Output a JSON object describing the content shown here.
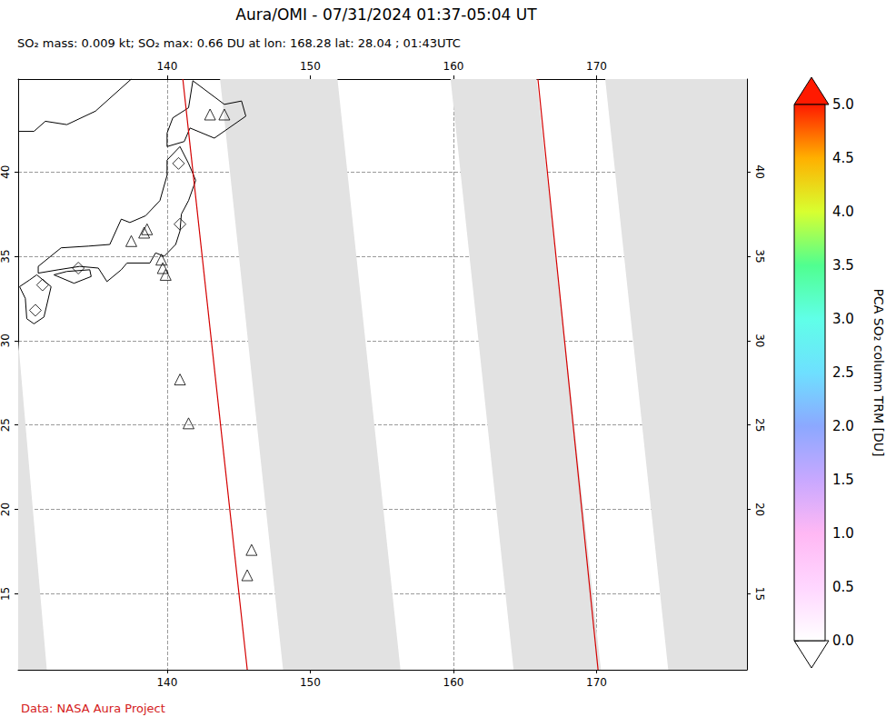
{
  "chart_data": {
    "type": "map",
    "title": "Aura/OMI - 07/31/2024 01:37-05:04 UT",
    "subtitle": "SO₂ mass: 0.009 kt; SO₂ max: 0.66 DU at lon: 168.28 lat: 28.04 ; 01:43UTC",
    "source": "Data: NASA Aura Project",
    "xlim": [
      129.6,
      180.5
    ],
    "xticks": [
      140,
      150,
      160,
      170
    ],
    "ylim": [
      10.5,
      45.5
    ],
    "yticks": [
      15,
      20,
      25,
      30,
      35,
      40
    ],
    "grid": true,
    "swath_gaps": {
      "color": "#e2e2e2",
      "polygons": [
        [
          [
            129.6,
            30.0
          ],
          [
            131.6,
            10.5
          ],
          [
            129.6,
            10.5
          ]
        ],
        [
          [
            143.7,
            45.5
          ],
          [
            151.9,
            45.5
          ],
          [
            156.3,
            10.5
          ],
          [
            148.1,
            10.5
          ]
        ],
        [
          [
            159.8,
            45.5
          ],
          [
            165.8,
            45.5
          ],
          [
            170.3,
            10.5
          ],
          [
            164.2,
            10.5
          ]
        ],
        [
          [
            170.6,
            45.5
          ],
          [
            180.5,
            45.5
          ],
          [
            180.5,
            10.5
          ],
          [
            175.0,
            10.5
          ]
        ]
      ]
    },
    "coastlines": [
      [
        [
          140.0,
          41.5
        ],
        [
          141.2,
          41.8
        ],
        [
          141.6,
          42.6
        ],
        [
          143.3,
          42.0
        ],
        [
          145.5,
          43.3
        ],
        [
          145.2,
          44.2
        ],
        [
          144.0,
          44.0
        ],
        [
          141.8,
          45.4
        ],
        [
          141.5,
          43.8
        ],
        [
          140.4,
          43.2
        ],
        [
          140.0,
          42.3
        ],
        [
          140.0,
          41.5
        ]
      ],
      [
        [
          140.9,
          41.5
        ],
        [
          141.5,
          40.5
        ],
        [
          142.0,
          39.5
        ],
        [
          141.5,
          38.3
        ],
        [
          141.0,
          37.5
        ],
        [
          140.9,
          36.5
        ],
        [
          140.6,
          35.7
        ],
        [
          139.8,
          35.0
        ],
        [
          139.2,
          35.2
        ],
        [
          138.8,
          34.6
        ],
        [
          137.2,
          34.6
        ],
        [
          136.8,
          34.2
        ],
        [
          135.8,
          33.5
        ],
        [
          135.2,
          34.3
        ],
        [
          133.9,
          34.4
        ],
        [
          132.4,
          34.2
        ],
        [
          131.0,
          34.0
        ],
        [
          131.0,
          34.4
        ],
        [
          132.6,
          35.5
        ],
        [
          134.5,
          35.6
        ],
        [
          136.0,
          35.7
        ],
        [
          136.8,
          37.2
        ],
        [
          137.4,
          37.0
        ],
        [
          138.5,
          37.4
        ],
        [
          139.5,
          38.3
        ],
        [
          140.0,
          39.8
        ],
        [
          140.0,
          40.7
        ],
        [
          140.9,
          41.5
        ]
      ],
      [
        [
          130.9,
          33.9
        ],
        [
          131.9,
          33.2
        ],
        [
          131.4,
          31.4
        ],
        [
          130.7,
          31.0
        ],
        [
          130.2,
          31.3
        ],
        [
          130.1,
          32.5
        ],
        [
          129.7,
          33.2
        ],
        [
          130.4,
          33.6
        ],
        [
          130.9,
          33.9
        ]
      ],
      [
        [
          132.1,
          33.9
        ],
        [
          133.5,
          33.4
        ],
        [
          134.7,
          33.8
        ],
        [
          134.6,
          34.2
        ],
        [
          133.0,
          34.1
        ],
        [
          132.1,
          33.9
        ]
      ],
      [
        [
          129.6,
          42.4
        ],
        [
          130.7,
          42.4
        ],
        [
          131.5,
          43.0
        ],
        [
          133.0,
          42.8
        ],
        [
          135.0,
          43.6
        ],
        [
          137.5,
          45.5
        ]
      ]
    ],
    "tracks": {
      "color": "#d40000",
      "lines": [
        [
          [
            141.1,
            45.5
          ],
          [
            145.6,
            10.5
          ]
        ],
        [
          [
            165.9,
            45.5
          ],
          [
            170.1,
            10.5
          ]
        ]
      ]
    },
    "markers": [
      {
        "marker": "triangle",
        "points": [
          [
            143.0,
            43.4
          ],
          [
            144.0,
            43.4
          ],
          [
            138.4,
            36.4
          ],
          [
            138.6,
            36.6
          ],
          [
            137.5,
            35.9
          ],
          [
            139.6,
            34.8
          ],
          [
            139.7,
            34.3
          ],
          [
            139.9,
            33.9
          ],
          [
            140.9,
            27.7
          ],
          [
            141.5,
            25.1
          ],
          [
            145.9,
            17.6
          ],
          [
            145.6,
            16.1
          ]
        ]
      },
      {
        "marker": "diamond",
        "points": [
          [
            140.8,
            40.5
          ],
          [
            140.9,
            36.9
          ],
          [
            133.8,
            34.3
          ],
          [
            131.3,
            33.3
          ],
          [
            130.8,
            31.8
          ]
        ]
      }
    ],
    "colorbar": {
      "label": "PCA SO₂ column TRM [DU]",
      "range": [
        0,
        5
      ],
      "ticks": [
        {
          "value": 0,
          "label": "0.0"
        },
        {
          "value": 0.5,
          "label": "0.5"
        },
        {
          "value": 1,
          "label": "1.0"
        },
        {
          "value": 1.5,
          "label": "1.5"
        },
        {
          "value": 2,
          "label": "2.0"
        },
        {
          "value": 2.5,
          "label": "2.5"
        },
        {
          "value": 3,
          "label": "3.0"
        },
        {
          "value": 3.5,
          "label": "3.5"
        },
        {
          "value": 4,
          "label": "4.0"
        },
        {
          "value": 4.5,
          "label": "4.5"
        },
        {
          "value": 5,
          "label": "5.0"
        }
      ]
    }
  }
}
